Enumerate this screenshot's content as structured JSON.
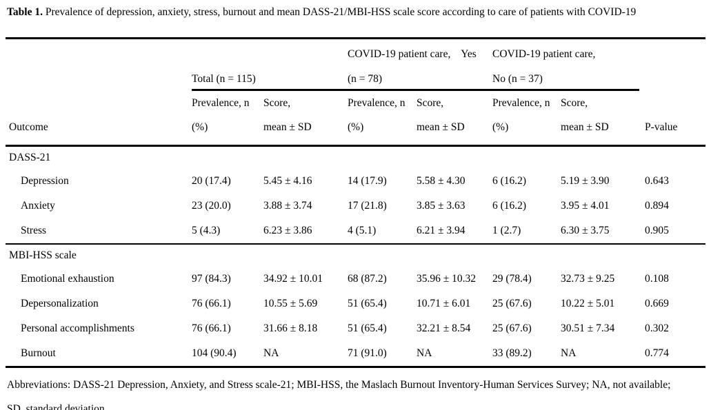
{
  "title": {
    "label": "Table 1.",
    "text": "Prevalence of depression, anxiety, stress, burnout and mean DASS-21/MBI-HSS scale score according to care of patients with COVID-19"
  },
  "header": {
    "outcome_label": "Outcome",
    "pvalue_label": "P-value",
    "prevalence_label": "Prevalence, n\n(%)",
    "score_label": "Score,\nmean ± SD",
    "groups": {
      "total": {
        "line1": "",
        "line2": "Total (n = 115)"
      },
      "yes": {
        "line1": "COVID-19 patient care,    Yes",
        "line2": "(n = 78)"
      },
      "no": {
        "line1": "COVID-19 patient care,",
        "line2": "No (n = 37)"
      }
    }
  },
  "sections": [
    {
      "label": "DASS-21",
      "rows": [
        {
          "label": "Depression",
          "values": [
            "20 (17.4)",
            "5.45 ± 4.16",
            "14 (17.9)",
            "5.58 ± 4.30",
            "6 (16.2)",
            "5.19 ± 3.90",
            "0.643"
          ]
        },
        {
          "label": "Anxiety",
          "values": [
            "23 (20.0)",
            "3.88 ± 3.74",
            "17 (21.8)",
            "3.85 ± 3.63",
            "6 (16.2)",
            "3.95 ± 4.01",
            "0.894"
          ]
        },
        {
          "label": "Stress",
          "values": [
            "5 (4.3)",
            "6.23 ± 3.86",
            "4 (5.1)",
            "6.21 ± 3.94",
            "1 (2.7)",
            "6.30 ± 3.75",
            "0.905"
          ]
        }
      ]
    },
    {
      "label": "MBI-HSS scale",
      "rows": [
        {
          "label": "Emotional exhaustion",
          "values": [
            "97 (84.3)",
            "34.92 ± 10.01",
            "68 (87.2)",
            "35.96 ± 10.32",
            "29 (78.4)",
            "32.73 ± 9.25",
            "0.108"
          ]
        },
        {
          "label": "Depersonalization",
          "values": [
            "76 (66.1)",
            "10.55 ± 5.69",
            "51 (65.4)",
            "10.71 ± 6.01",
            "25 (67.6)",
            "10.22 ± 5.01",
            "0.669"
          ]
        },
        {
          "label": "Personal accomplishments",
          "values": [
            "76 (66.1)",
            "31.66 ± 8.18",
            "51 (65.4)",
            "32.21 ± 8.54",
            "25 (67.6)",
            "30.51 ± 7.34",
            "0.302"
          ]
        },
        {
          "label": "Burnout",
          "values": [
            "104 (90.4)",
            "NA",
            "71 (91.0)",
            "NA",
            "33 (89.2)",
            "NA",
            "0.774"
          ]
        }
      ]
    }
  ],
  "footnote": {
    "line1": "Abbreviations: DASS-21 Depression, Anxiety, and Stress scale-21; MBI-HSS, the Maslach Burnout Inventory-Human Services Survey; NA, not available;",
    "line2": "SD, standard deviation"
  },
  "colors": {
    "text": "#000000",
    "background": "#ffffff",
    "rule": "#000000"
  }
}
